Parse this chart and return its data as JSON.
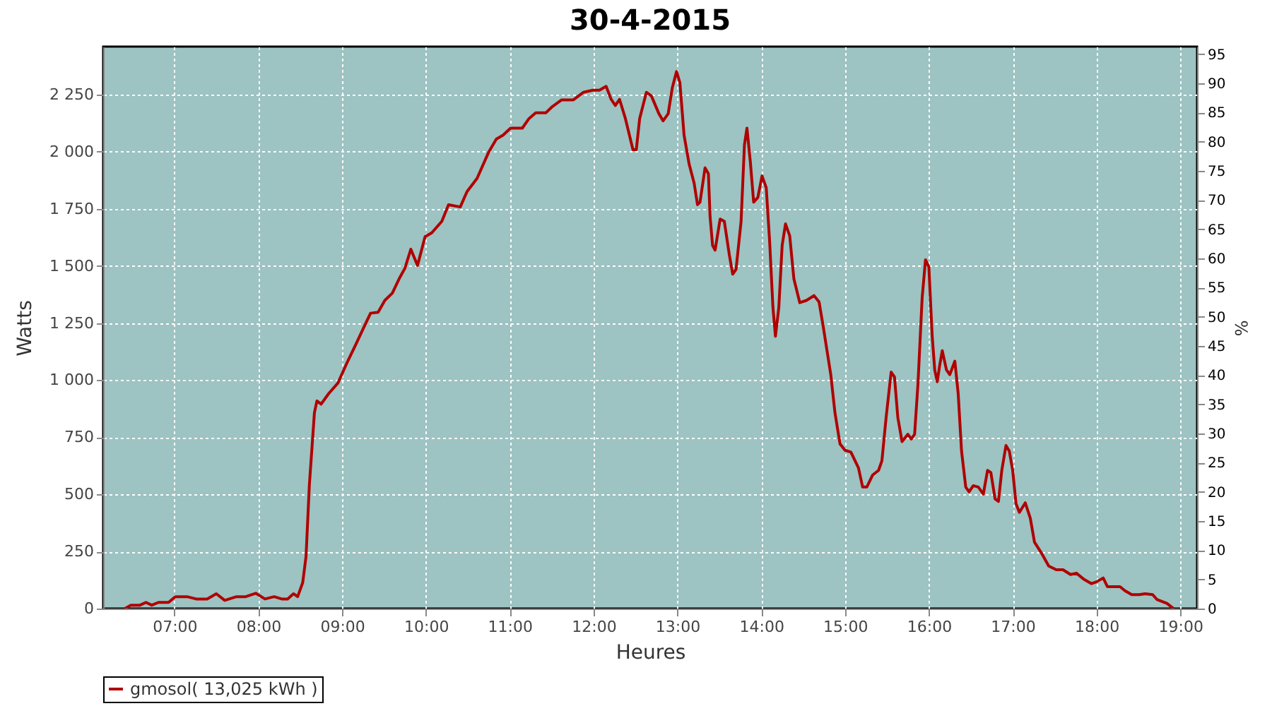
{
  "chart_data": {
    "type": "line",
    "title": "30-4-2015",
    "xlabel": "Heures",
    "ylabel": "Watts",
    "y2label": "%",
    "xlim": [
      6.15,
      19.2
    ],
    "xticks": [
      {
        "value": 7,
        "label": "07:00"
      },
      {
        "value": 8,
        "label": "08:00"
      },
      {
        "value": 9,
        "label": "09:00"
      },
      {
        "value": 10,
        "label": "10:00"
      },
      {
        "value": 11,
        "label": "11:00"
      },
      {
        "value": 12,
        "label": "12:00"
      },
      {
        "value": 13,
        "label": "13:00"
      },
      {
        "value": 14,
        "label": "14:00"
      },
      {
        "value": 15,
        "label": "15:00"
      },
      {
        "value": 16,
        "label": "16:00"
      },
      {
        "value": 17,
        "label": "17:00"
      },
      {
        "value": 18,
        "label": "18:00"
      },
      {
        "value": 19,
        "label": "19:00"
      }
    ],
    "ylim": [
      0,
      2460
    ],
    "yticks": [
      0,
      250,
      500,
      750,
      {
        "value": 1000,
        "label": "1 000"
      },
      {
        "value": 1250,
        "label": "1 250"
      },
      {
        "value": 1500,
        "label": "1 500"
      },
      {
        "value": 1750,
        "label": "1 750"
      },
      {
        "value": 2000,
        "label": "2 000"
      },
      {
        "value": 2250,
        "label": "2 250"
      }
    ],
    "y2lim": [
      0,
      96.3
    ],
    "y2ticks": [
      0,
      5,
      10,
      15,
      20,
      25,
      30,
      35,
      40,
      45,
      50,
      55,
      60,
      65,
      70,
      75,
      80,
      85,
      90,
      95
    ],
    "grid": true,
    "legend": "bottom",
    "x": [
      6.41,
      6.48,
      6.59,
      6.66,
      6.73,
      6.81,
      6.93,
      7.01,
      7.15,
      7.26,
      7.39,
      7.5,
      7.6,
      7.74,
      7.85,
      7.97,
      8.08,
      8.19,
      8.28,
      8.35,
      8.42,
      8.47,
      8.53,
      8.57,
      8.61,
      8.65,
      8.67,
      8.7,
      8.75,
      8.84,
      8.95,
      9.06,
      9.17,
      9.29,
      9.34,
      9.43,
      9.51,
      9.6,
      9.68,
      9.75,
      9.82,
      9.9,
      9.99,
      10.07,
      10.19,
      10.27,
      10.41,
      10.49,
      10.61,
      10.75,
      10.84,
      10.92,
      11.01,
      11.15,
      11.23,
      11.31,
      11.43,
      11.51,
      11.62,
      11.76,
      11.88,
      11.99,
      12.07,
      12.15,
      12.21,
      12.26,
      12.31,
      12.38,
      12.47,
      12.51,
      12.55,
      12.63,
      12.69,
      12.78,
      12.83,
      12.89,
      12.94,
      12.99,
      13.03,
      13.08,
      13.14,
      13.2,
      13.24,
      13.27,
      13.33,
      13.37,
      13.39,
      13.42,
      13.45,
      13.51,
      13.56,
      13.62,
      13.66,
      13.7,
      13.76,
      13.8,
      13.83,
      13.87,
      13.91,
      13.96,
      14.01,
      14.06,
      14.1,
      14.14,
      14.17,
      14.21,
      14.25,
      14.29,
      14.34,
      14.39,
      14.46,
      14.54,
      14.63,
      14.69,
      14.74,
      14.83,
      14.88,
      14.94,
      15.0,
      15.07,
      15.16,
      15.21,
      15.26,
      15.33,
      15.4,
      15.44,
      15.49,
      15.55,
      15.59,
      15.63,
      15.68,
      15.75,
      15.79,
      15.83,
      15.87,
      15.92,
      15.96,
      16.0,
      16.04,
      16.07,
      16.1,
      16.13,
      16.16,
      16.21,
      16.25,
      16.31,
      16.35,
      16.39,
      16.44,
      16.48,
      16.53,
      16.59,
      16.65,
      16.7,
      16.74,
      16.79,
      16.83,
      16.87,
      16.92,
      16.96,
      17.0,
      17.04,
      17.08,
      17.15,
      17.21,
      17.26,
      17.35,
      17.43,
      17.52,
      17.6,
      17.69,
      17.76,
      17.85,
      17.94,
      18.0,
      18.08,
      18.13,
      18.28,
      18.34,
      18.42,
      18.51,
      18.58,
      18.67,
      18.72,
      18.84,
      18.92
    ],
    "series": [
      {
        "name": "gmosol( 13,025 kWh )",
        "color": "#b00000",
        "values": [
          0,
          15,
          15,
          27,
          15,
          27,
          27,
          52,
          52,
          42,
          42,
          65,
          36,
          52,
          52,
          67,
          42,
          52,
          42,
          42,
          65,
          52,
          113,
          228,
          543,
          752,
          857,
          909,
          895,
          941,
          987,
          1077,
          1161,
          1255,
          1293,
          1297,
          1349,
          1381,
          1443,
          1490,
          1573,
          1502,
          1628,
          1645,
          1695,
          1768,
          1758,
          1825,
          1883,
          1999,
          2055,
          2072,
          2103,
          2103,
          2145,
          2170,
          2170,
          2198,
          2227,
          2227,
          2260,
          2269,
          2269,
          2286,
          2229,
          2202,
          2229,
          2145,
          2009,
          2009,
          2145,
          2260,
          2244,
          2166,
          2135,
          2166,
          2281,
          2351,
          2302,
          2072,
          1946,
          1862,
          1768,
          1779,
          1929,
          1904,
          1716,
          1590,
          1569,
          1705,
          1695,
          1548,
          1464,
          1485,
          1695,
          2030,
          2103,
          1957,
          1779,
          1800,
          1894,
          1842,
          1611,
          1318,
          1192,
          1318,
          1590,
          1684,
          1632,
          1443,
          1339,
          1349,
          1370,
          1343,
          1234,
          1024,
          857,
          721,
          693,
          685,
          616,
          532,
          532,
          585,
          605,
          647,
          836,
          1035,
          1014,
          836,
          731,
          763,
          742,
          763,
          983,
          1360,
          1527,
          1496,
          1192,
          1045,
          993,
          1066,
          1129,
          1045,
          1024,
          1083,
          941,
          689,
          532,
          511,
          538,
          532,
          501,
          605,
          595,
          480,
          469,
          605,
          714,
          689,
          605,
          459,
          421,
          463,
          396,
          291,
          239,
          186,
          170,
          170,
          149,
          155,
          128,
          109,
          117,
          134,
          96,
          96,
          78,
          61,
          61,
          65,
          61,
          40,
          23,
          0
        ]
      }
    ]
  }
}
